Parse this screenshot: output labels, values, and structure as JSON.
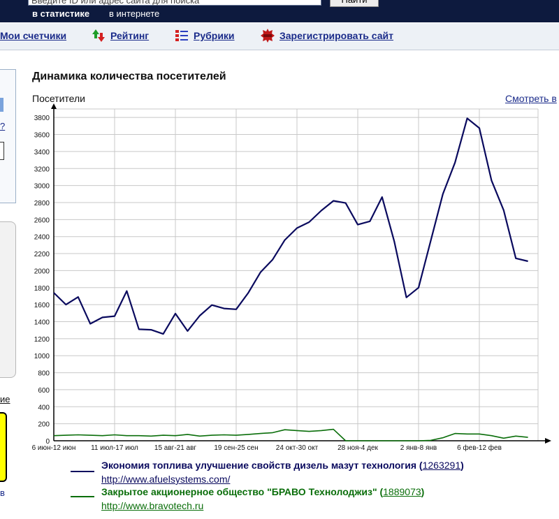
{
  "header": {
    "search_placeholder": "Введите ID или адрес сайта для поиска",
    "search_button": "Найти",
    "scope_stat": "в статистике",
    "scope_net": "в интернете"
  },
  "nav": {
    "my_counters": "Мои счетчики",
    "rating": "Рейтинг",
    "rubrics": "Рубрики",
    "register": "Зарегистрировать сайт"
  },
  "sidebar": {
    "q_mark": "?",
    "link_fragment": "ие",
    "v_fragment": "в"
  },
  "view_link": "Смотреть в",
  "chart_data": {
    "type": "line",
    "title": "Динамика количества посетителей",
    "ylabel": "Посетители",
    "xlabel": "",
    "ylim": [
      0,
      3900
    ],
    "yticks": [
      0,
      200,
      400,
      600,
      800,
      1000,
      1200,
      1400,
      1600,
      1800,
      2000,
      2200,
      2400,
      2600,
      2800,
      3000,
      3200,
      3400,
      3600,
      3800
    ],
    "x_tick_labels": [
      "6 июн-12 июн",
      "11 июл-17 июл",
      "15 авг-21 авг",
      "19 сен-25 сен",
      "24 окт-30 окт",
      "28 ноя-4 дек",
      "2 янв-8 янв",
      "6 фев-12 фев"
    ],
    "x_tick_weeks": [
      0,
      5,
      10,
      15,
      20,
      25,
      30,
      35
    ],
    "grid": true,
    "series": [
      {
        "name": "Экономия топлива улучшение свойств дизель мазут технология",
        "id": "1263291",
        "url": "http://www.afuelsystems.com/",
        "color": "#0a0a5e",
        "values": [
          1740,
          1600,
          1690,
          1375,
          1450,
          1465,
          1760,
          1310,
          1305,
          1255,
          1495,
          1290,
          1470,
          1595,
          1555,
          1545,
          1740,
          1980,
          2130,
          2360,
          2500,
          2570,
          2705,
          2820,
          2795,
          2540,
          2580,
          2865,
          2345,
          1685,
          1800,
          2350,
          2900,
          3270,
          3790,
          3675,
          3060,
          2710,
          2145,
          2110
        ]
      },
      {
        "name": "Закрытое акционерное общество \"БРАВО Технолоджиз\"",
        "id": "1889073",
        "url": "http://www.bravotech.ru",
        "color": "#0a6e0a",
        "values": [
          60,
          65,
          70,
          65,
          60,
          70,
          60,
          60,
          55,
          65,
          60,
          75,
          55,
          65,
          70,
          65,
          75,
          85,
          95,
          130,
          120,
          110,
          120,
          135,
          0,
          0,
          0,
          0,
          0,
          0,
          0,
          5,
          35,
          85,
          80,
          80,
          60,
          30,
          55,
          40
        ]
      }
    ]
  }
}
